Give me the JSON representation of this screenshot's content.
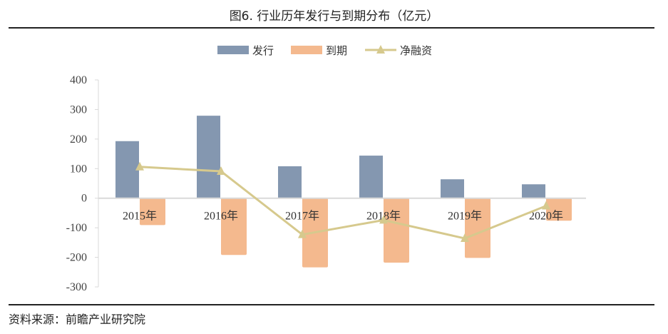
{
  "title": "图6. 行业历年发行与到期分布（亿元）",
  "source": "资料来源：前瞻产业研究院",
  "chart_data": {
    "type": "bar",
    "categories": [
      "2015年",
      "2016年",
      "2017年",
      "2018年",
      "2019年",
      "2020年"
    ],
    "series": [
      {
        "name": "发行",
        "type": "bar",
        "color": "#8497b0",
        "values": [
          193,
          279,
          108,
          144,
          64,
          47
        ]
      },
      {
        "name": "到期",
        "type": "bar",
        "color": "#f4b98e",
        "values": [
          -91,
          -192,
          -234,
          -218,
          -202,
          -76
        ]
      },
      {
        "name": "净融资",
        "type": "line",
        "marker": "triangle",
        "color": "#d6c98d",
        "values": [
          106,
          91,
          -123,
          -74,
          -136,
          -26
        ]
      }
    ],
    "ylim": [
      -300,
      400
    ],
    "yticks": [
      400,
      300,
      200,
      100,
      0,
      -100,
      -200,
      -300
    ],
    "legend": "top",
    "grid": false
  }
}
